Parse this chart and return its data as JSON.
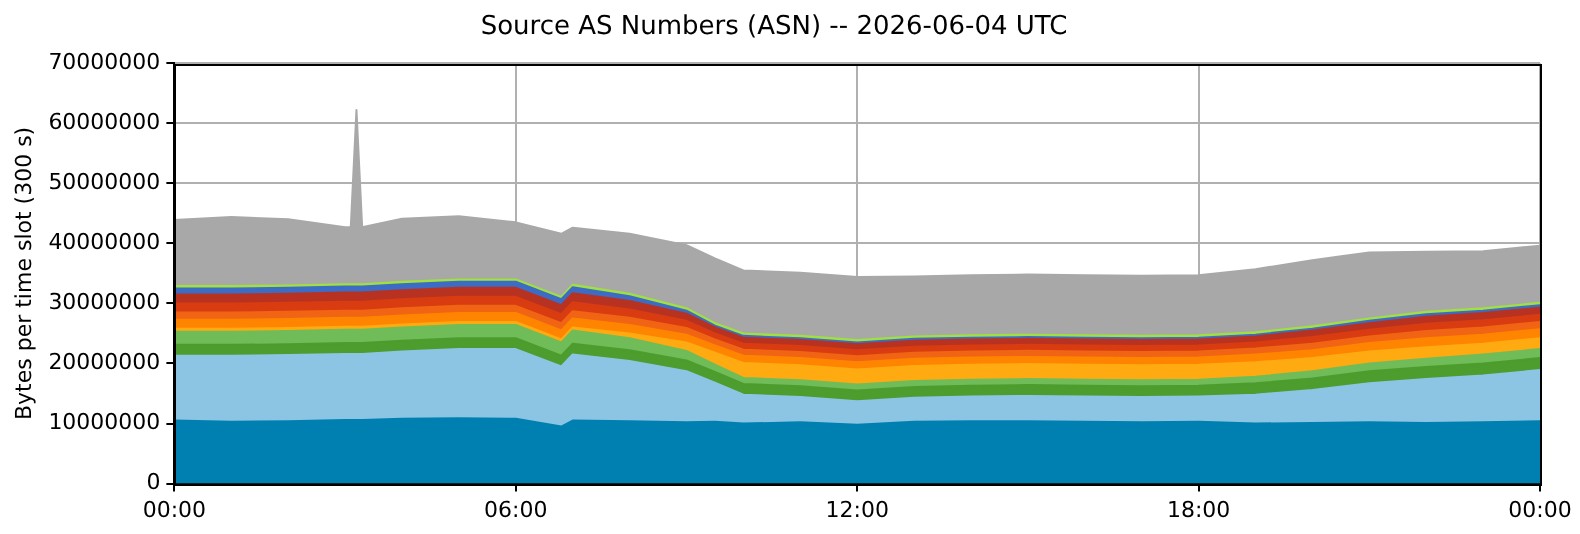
{
  "chart_data": {
    "type": "area",
    "title": "Source AS Numbers (ASN) -- 2026-06-04 UTC",
    "ylabel": "Bytes per time slot (300 s)",
    "stacked": true,
    "grid": true,
    "legend": false,
    "x": [
      0,
      1,
      2,
      3,
      3.1,
      3.2,
      3.3,
      4,
      5,
      6,
      6.8,
      7,
      8,
      9,
      9.5,
      10,
      11,
      12,
      13,
      14,
      15,
      16,
      17,
      18,
      19,
      20,
      21,
      22,
      23,
      24
    ],
    "xlim": [
      0,
      24
    ],
    "xticks": [
      {
        "value": 0,
        "label": "00:00"
      },
      {
        "value": 6,
        "label": "06:00"
      },
      {
        "value": 12,
        "label": "12:00"
      },
      {
        "value": 18,
        "label": "18:00"
      },
      {
        "value": 24,
        "label": "00:00"
      }
    ],
    "ylim": [
      0,
      70000000
    ],
    "yticks": [
      0,
      10000000,
      20000000,
      30000000,
      40000000,
      50000000,
      60000000,
      70000000
    ],
    "series": [
      {
        "color": "#0080b0",
        "values": [
          10500000,
          10300000,
          10400000,
          10600000,
          10600000,
          10600000,
          10600000,
          10800000,
          10900000,
          10800000,
          9500000,
          10500000,
          10400000,
          10200000,
          10300000,
          10000000,
          10200000,
          9800000,
          10300000,
          10400000,
          10400000,
          10300000,
          10200000,
          10300000,
          10000000,
          10100000,
          10200000,
          10100000,
          10200000,
          10400000
        ]
      },
      {
        "color": "#8cc4e4",
        "values": [
          10800000,
          11000000,
          11000000,
          11000000,
          11000000,
          11000000,
          11000000,
          11200000,
          11500000,
          11600000,
          10000000,
          11000000,
          10000000,
          8500000,
          6500000,
          4800000,
          4200000,
          3900000,
          4000000,
          4100000,
          4200000,
          4200000,
          4200000,
          4200000,
          4800000,
          5500000,
          6500000,
          7300000,
          7800000,
          8500000
        ]
      },
      {
        "color": "#4c9c2e",
        "values": [
          1800000,
          1800000,
          1800000,
          1800000,
          1800000,
          1800000,
          1800000,
          1800000,
          1800000,
          1800000,
          1800000,
          1800000,
          1800000,
          1800000,
          1800000,
          1800000,
          1800000,
          1800000,
          1800000,
          1800000,
          1800000,
          1800000,
          1800000,
          1800000,
          1900000,
          1900000,
          2000000,
          2000000,
          2000000,
          2000000
        ]
      },
      {
        "color": "#70bc58",
        "values": [
          2200000,
          2200000,
          2200000,
          2200000,
          2200000,
          2200000,
          2200000,
          2200000,
          2200000,
          2200000,
          2200000,
          2200000,
          2000000,
          1600000,
          1200000,
          1000000,
          1000000,
          1000000,
          1000000,
          1000000,
          1000000,
          1000000,
          1000000,
          1000000,
          1100000,
          1200000,
          1300000,
          1400000,
          1500000,
          1500000
        ]
      },
      {
        "color": "#ffaa10",
        "values": [
          500000,
          500000,
          500000,
          500000,
          500000,
          500000,
          500000,
          500000,
          500000,
          500000,
          500000,
          500000,
          800000,
          1400000,
          2000000,
          2500000,
          2500000,
          2500000,
          2500000,
          2500000,
          2500000,
          2500000,
          2500000,
          2500000,
          2400000,
          2200000,
          2000000,
          1900000,
          1800000,
          1800000
        ]
      },
      {
        "color": "#ff8400",
        "values": [
          1500000,
          1500000,
          1500000,
          1500000,
          1500000,
          1500000,
          1500000,
          1500000,
          1500000,
          1500000,
          1500000,
          1500000,
          1400000,
          1300000,
          1200000,
          1200000,
          1200000,
          1200000,
          1200000,
          1200000,
          1200000,
          1200000,
          1200000,
          1200000,
          1300000,
          1300000,
          1400000,
          1500000,
          1500000,
          1500000
        ]
      },
      {
        "color": "#f06414",
        "values": [
          1200000,
          1200000,
          1200000,
          1200000,
          1200000,
          1200000,
          1200000,
          1200000,
          1200000,
          1200000,
          1200000,
          1200000,
          1200000,
          1100000,
          1000000,
          1000000,
          1000000,
          1000000,
          1000000,
          1000000,
          1000000,
          1000000,
          1000000,
          1000000,
          1000000,
          1100000,
          1100000,
          1200000,
          1200000,
          1200000
        ]
      },
      {
        "color": "#d83c10",
        "values": [
          1500000,
          1500000,
          1500000,
          1500000,
          1500000,
          1500000,
          1500000,
          1500000,
          1500000,
          1500000,
          1500000,
          1500000,
          1400000,
          1200000,
          1000000,
          1000000,
          1000000,
          1000000,
          1000000,
          1000000,
          1000000,
          1000000,
          1000000,
          1000000,
          1000000,
          1100000,
          1100000,
          1200000,
          1200000,
          1200000
        ]
      },
      {
        "color": "#b83222",
        "values": [
          1500000,
          1500000,
          1500000,
          1500000,
          1500000,
          1500000,
          1500000,
          1500000,
          1500000,
          1500000,
          1500000,
          1500000,
          1400000,
          1200000,
          1000000,
          1000000,
          1000000,
          1000000,
          1000000,
          1000000,
          1000000,
          1000000,
          1000000,
          1000000,
          1000000,
          1100000,
          1100000,
          1200000,
          1200000,
          1200000
        ]
      },
      {
        "color": "#3c6cc4",
        "values": [
          1000000,
          1000000,
          1000000,
          1000000,
          1000000,
          1000000,
          1000000,
          1000000,
          1000000,
          1000000,
          1000000,
          1000000,
          800000,
          500000,
          300000,
          300000,
          300000,
          300000,
          300000,
          300000,
          300000,
          300000,
          300000,
          300000,
          300000,
          300000,
          400000,
          400000,
          400000,
          400000
        ]
      },
      {
        "color": "#a0e040",
        "values": [
          400000,
          400000,
          400000,
          400000,
          400000,
          400000,
          400000,
          400000,
          400000,
          400000,
          400000,
          400000,
          400000,
          400000,
          400000,
          400000,
          400000,
          400000,
          400000,
          400000,
          400000,
          400000,
          400000,
          400000,
          400000,
          400000,
          400000,
          400000,
          400000,
          400000
        ]
      },
      {
        "color": "#a8a8a8",
        "values": [
          11000000,
          11500000,
          11000000,
          9500000,
          9500000,
          29000000,
          9500000,
          10500000,
          10500000,
          9500000,
          10500000,
          9500000,
          10000000,
          10500000,
          10800000,
          10500000,
          10500000,
          10500000,
          10000000,
          10000000,
          10000000,
          10000000,
          10000000,
          10000000,
          10500000,
          11000000,
          11000000,
          10000000,
          9500000,
          9500000
        ]
      }
    ]
  }
}
